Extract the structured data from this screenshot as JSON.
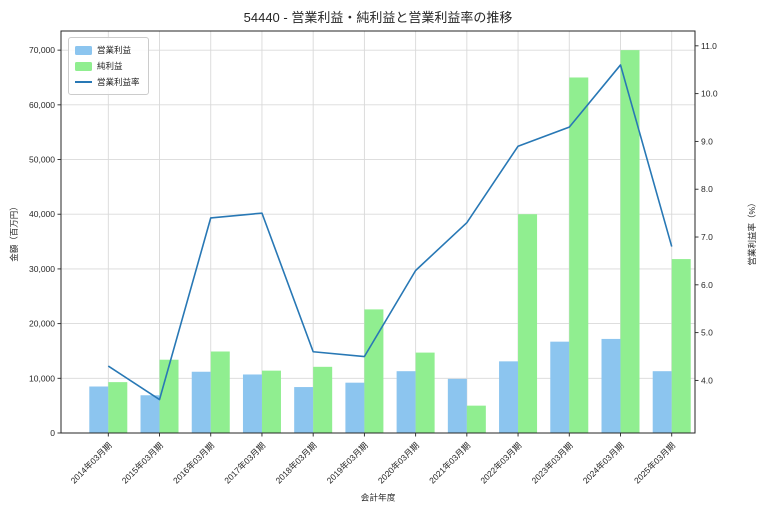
{
  "title": "54440 - 営業利益・純利益と営業利益率の推移",
  "colors": {
    "operating_profit_bar": "#8CC5EF",
    "net_profit_bar": "#90EE90",
    "margin_line": "#2878B5",
    "grid": "#d9d9d9",
    "spine": "#262626",
    "text": "#262626",
    "background": "#ffffff"
  },
  "chart_data": {
    "type": "bar+line combo",
    "title": "54440 - 営業利益・純利益と営業利益率の推移",
    "xlabel": "会計年度",
    "ylabel_left": "金額（百万円）",
    "ylabel_right": "営業利益率（%）",
    "categories": [
      "2014年03月期",
      "2015年03月期",
      "2016年03月期",
      "2017年03月期",
      "2018年03月期",
      "2019年03月期",
      "2020年03月期",
      "2021年03月期",
      "2022年03月期",
      "2023年03月期",
      "2024年03月期",
      "2025年03月期"
    ],
    "series": [
      {
        "name": "営業利益",
        "type": "bar",
        "axis": "left",
        "color": "#8CC5EF",
        "values": [
          8500,
          6900,
          11200,
          10700,
          8400,
          9200,
          11300,
          9900,
          13100,
          16700,
          17200,
          11300
        ]
      },
      {
        "name": "純利益",
        "type": "bar",
        "axis": "left",
        "color": "#90EE90",
        "values": [
          9300,
          13400,
          14900,
          11400,
          12100,
          22600,
          14700,
          5000,
          40000,
          65000,
          70000,
          31800
        ]
      },
      {
        "name": "営業利益率",
        "type": "line",
        "axis": "right",
        "color": "#2878B5",
        "values": [
          4.3,
          3.6,
          7.4,
          7.5,
          4.6,
          4.5,
          6.3,
          7.3,
          8.9,
          9.3,
          10.6,
          6.8
        ]
      }
    ],
    "left_axis": {
      "min": 0,
      "max": 73500,
      "ticks": [
        0,
        10000,
        20000,
        30000,
        40000,
        50000,
        60000,
        70000
      ]
    },
    "right_axis": {
      "min": 2.9,
      "max": 11.31,
      "ticks": [
        4.0,
        5.0,
        6.0,
        7.0,
        8.0,
        9.0,
        10.0,
        11.0
      ]
    },
    "grid": true,
    "legend_position": "upper left"
  }
}
